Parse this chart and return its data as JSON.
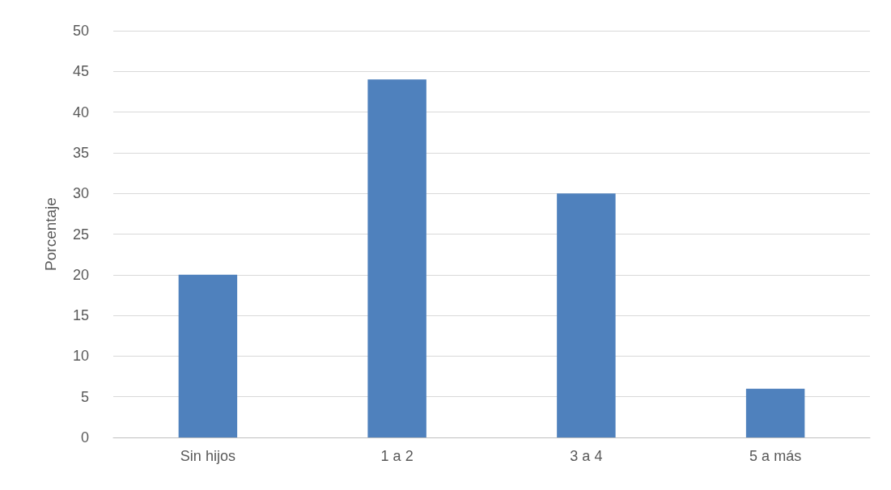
{
  "chart_data": {
    "type": "bar",
    "ylabel": "Porcentaje",
    "categories": [
      "Sin hijos",
      "1 a 2",
      "3 a 4",
      "5 a más"
    ],
    "values": [
      20,
      44,
      30,
      6
    ],
    "color": "#4f81bd",
    "ylim": [
      0,
      50
    ],
    "yticks": [
      0,
      5,
      10,
      15,
      20,
      25,
      30,
      35,
      40,
      45,
      50
    ],
    "grid": "y"
  }
}
